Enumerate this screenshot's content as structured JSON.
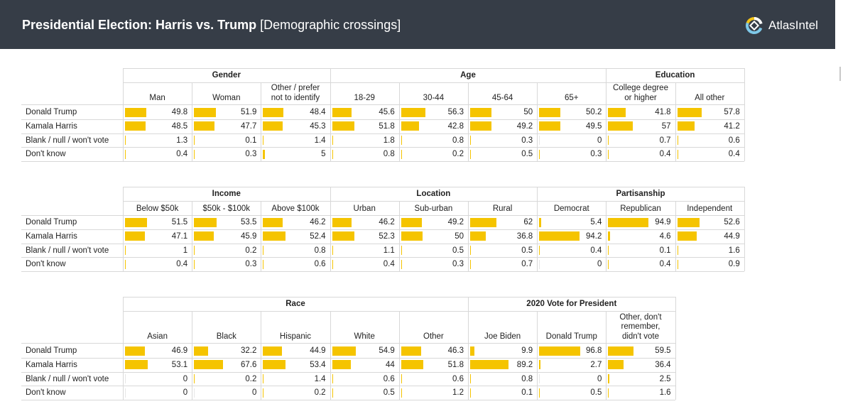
{
  "header": {
    "title_bold": "Presidential Election: Harris vs. Trump",
    "title_rest": "[Demographic crossings]",
    "brand_name": "AtlasIntel",
    "background": "#363d47"
  },
  "row_labels": [
    "Donald Trump",
    "Kamala Harris",
    "Blank / null / won't vote",
    "Don't know"
  ],
  "chart_data": {
    "type": "table",
    "bar_color": "#f5c400",
    "value_range": [
      0,
      100
    ],
    "tables": [
      {
        "groups": [
          {
            "name": "Gender",
            "columns": [
              "Man",
              "Woman",
              "Other / prefer\nnot to identify"
            ]
          },
          {
            "name": "Age",
            "columns": [
              "18-29",
              "30-44",
              "45-64",
              "65+"
            ]
          },
          {
            "name": "Education",
            "columns": [
              "College degree\nor higher",
              "All other"
            ]
          }
        ],
        "rows": [
          {
            "label": "Donald Trump",
            "values": [
              "49.8",
              "51.9",
              "48.4",
              "45.6",
              "56.3",
              "50",
              "50.2",
              "41.8",
              "57.8"
            ]
          },
          {
            "label": "Kamala Harris",
            "values": [
              "48.5",
              "47.7",
              "45.3",
              "51.8",
              "42.8",
              "49.2",
              "49.5",
              "57",
              "41.2"
            ]
          },
          {
            "label": "Blank / null / won't vote",
            "values": [
              "1.3",
              "0.1",
              "1.4",
              "1.8",
              "0.8",
              "0.3",
              "0",
              "0.7",
              "0.6"
            ]
          },
          {
            "label": "Don't know",
            "values": [
              "0.4",
              "0.3",
              "5",
              "0.8",
              "0.2",
              "0.5",
              "0.3",
              "0.4",
              "0.4"
            ]
          }
        ]
      },
      {
        "groups": [
          {
            "name": "Income",
            "columns": [
              "Below $50k",
              "$50k - $100k",
              "Above $100k"
            ]
          },
          {
            "name": "Location",
            "columns": [
              "Urban",
              "Sub-urban",
              "Rural"
            ]
          },
          {
            "name": "Partisanship",
            "columns": [
              "Democrat",
              "Republican",
              "Independent"
            ]
          }
        ],
        "rows": [
          {
            "label": "Donald Trump",
            "values": [
              "51.5",
              "53.5",
              "46.2",
              "46.2",
              "49.2",
              "62",
              "5.4",
              "94.9",
              "52.6"
            ]
          },
          {
            "label": "Kamala Harris",
            "values": [
              "47.1",
              "45.9",
              "52.4",
              "52.3",
              "50",
              "36.8",
              "94.2",
              "4.6",
              "44.9"
            ]
          },
          {
            "label": "Blank / null / won't vote",
            "values": [
              "1",
              "0.2",
              "0.8",
              "1.1",
              "0.5",
              "0.5",
              "0.4",
              "0.1",
              "1.6"
            ]
          },
          {
            "label": "Don't know",
            "values": [
              "0.4",
              "0.3",
              "0.6",
              "0.4",
              "0.3",
              "0.7",
              "0",
              "0.4",
              "0.9"
            ]
          }
        ]
      },
      {
        "groups": [
          {
            "name": "Race",
            "columns": [
              "Asian",
              "Black",
              "Hispanic",
              "White",
              "Other"
            ]
          },
          {
            "name": "2020 Vote for President",
            "columns": [
              "Joe Biden",
              "Donald Trump",
              "Other, don't\nremember,\ndidn't vote"
            ]
          }
        ],
        "rows": [
          {
            "label": "Donald Trump",
            "values": [
              "46.9",
              "32.2",
              "44.9",
              "54.9",
              "46.3",
              "9.9",
              "96.8",
              "59.5"
            ]
          },
          {
            "label": "Kamala Harris",
            "values": [
              "53.1",
              "67.6",
              "53.4",
              "44",
              "51.8",
              "89.2",
              "2.7",
              "36.4"
            ]
          },
          {
            "label": "Blank / null / won't vote",
            "values": [
              "0",
              "0.2",
              "1.4",
              "0.6",
              "0.6",
              "0.8",
              "0",
              "2.5"
            ]
          },
          {
            "label": "Don't know",
            "values": [
              "0",
              "0",
              "0.2",
              "0.5",
              "1.2",
              "0.1",
              "0.5",
              "1.6"
            ]
          }
        ]
      }
    ]
  }
}
